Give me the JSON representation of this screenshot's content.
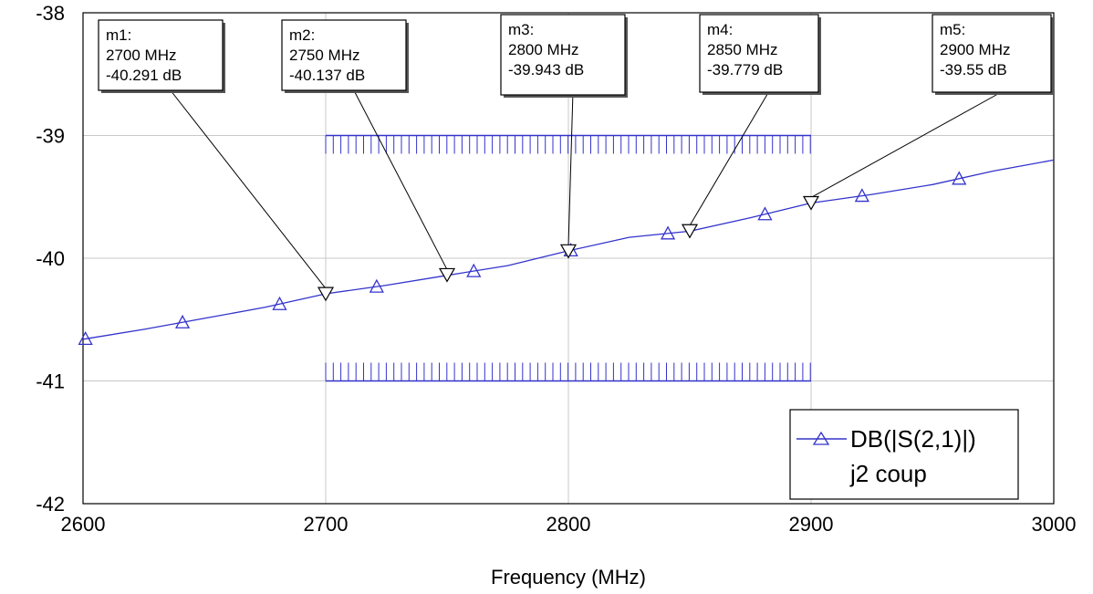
{
  "chart_data": {
    "type": "line",
    "xlabel": "Frequency (MHz)",
    "ylabel": "",
    "xlim": [
      2600,
      3000
    ],
    "ylim": [
      -42,
      -38
    ],
    "x_ticks": [
      "2600",
      "2700",
      "2800",
      "2900",
      "3000"
    ],
    "y_ticks": [
      "-38",
      "-39",
      "-40",
      "-41",
      "-42"
    ],
    "grid": true,
    "legend_position": "bottom-right",
    "series": [
      {
        "name": "DB(|S(2,1)|)",
        "subtitle": "j2 coup",
        "color": "#3333cc",
        "marker": "triangle-up",
        "x": [
          2600,
          2625,
          2650,
          2675,
          2700,
          2725,
          2750,
          2775,
          2800,
          2825,
          2850,
          2875,
          2900,
          2925,
          2950,
          2975,
          3000
        ],
        "y": [
          -40.66,
          -40.58,
          -40.49,
          -40.4,
          -40.29,
          -40.22,
          -40.14,
          -40.06,
          -39.94,
          -39.83,
          -39.78,
          -39.67,
          -39.55,
          -39.48,
          -39.4,
          -39.29,
          -39.2
        ],
        "marker_x": [
          2601,
          2641,
          2681,
          2721,
          2761,
          2801,
          2841,
          2881,
          2921,
          2961
        ]
      }
    ],
    "markers": [
      {
        "name": "m1:",
        "freq_label": "2700 MHz",
        "value_label": "-40.291 dB",
        "x": 2700,
        "y": -40.291
      },
      {
        "name": "m2:",
        "freq_label": "2750 MHz",
        "value_label": "-40.137 dB",
        "x": 2750,
        "y": -40.137
      },
      {
        "name": "m3:",
        "freq_label": "2800 MHz",
        "value_label": "-39.943 dB",
        "x": 2800,
        "y": -39.943
      },
      {
        "name": "m4:",
        "freq_label": "2850 MHz",
        "value_label": "-39.779 dB",
        "x": 2850,
        "y": -39.779
      },
      {
        "name": "m5:",
        "freq_label": "2900 MHz",
        "value_label": "-39.55 dB",
        "x": 2900,
        "y": -39.55
      }
    ],
    "limit_lines": [
      {
        "y": -39,
        "x_start": 2700,
        "x_end": 2900,
        "side": "below"
      },
      {
        "y": -41,
        "x_start": 2700,
        "x_end": 2900,
        "side": "above"
      }
    ]
  }
}
